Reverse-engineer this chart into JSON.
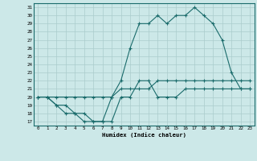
{
  "xlabel": "Humidex (Indice chaleur)",
  "bg_color": "#cce8e8",
  "grid_color": "#aacccc",
  "line_color": "#1a6b6b",
  "xlim": [
    -0.5,
    23.5
  ],
  "ylim": [
    16.5,
    31.5
  ],
  "yticks": [
    17,
    18,
    19,
    20,
    21,
    22,
    23,
    24,
    25,
    26,
    27,
    28,
    29,
    30,
    31
  ],
  "xticks": [
    0,
    1,
    2,
    3,
    4,
    5,
    6,
    7,
    8,
    9,
    10,
    11,
    12,
    13,
    14,
    15,
    16,
    17,
    18,
    19,
    20,
    21,
    22,
    23
  ],
  "curve1_x": [
    0,
    1,
    2,
    3,
    4,
    5,
    6,
    7,
    8,
    9,
    10,
    11,
    12,
    13,
    14,
    15,
    16,
    17,
    18,
    19,
    20,
    21,
    22,
    23
  ],
  "curve1_y": [
    20,
    20,
    19,
    18,
    18,
    17,
    17,
    17,
    20,
    22,
    26,
    29,
    29,
    30,
    29,
    30,
    30,
    31,
    30,
    29,
    27,
    23,
    21,
    21
  ],
  "curve2_x": [
    0,
    1,
    2,
    3,
    4,
    5,
    6,
    7,
    8,
    9,
    10,
    11,
    12,
    13,
    14,
    15,
    16,
    17,
    18,
    19,
    20,
    21,
    22,
    23
  ],
  "curve2_y": [
    20,
    20,
    19,
    19,
    18,
    18,
    17,
    17,
    17,
    20,
    20,
    22,
    22,
    20,
    20,
    20,
    21,
    21,
    21,
    21,
    21,
    21,
    21,
    21
  ],
  "curve3_x": [
    0,
    1,
    2,
    3,
    4,
    5,
    6,
    7,
    8,
    9,
    10,
    11,
    12,
    13,
    14,
    15,
    16,
    17,
    18,
    19,
    20,
    21,
    22,
    23
  ],
  "curve3_y": [
    20,
    20,
    20,
    20,
    20,
    20,
    20,
    20,
    20,
    21,
    21,
    21,
    21,
    22,
    22,
    22,
    22,
    22,
    22,
    22,
    22,
    22,
    22,
    22
  ]
}
